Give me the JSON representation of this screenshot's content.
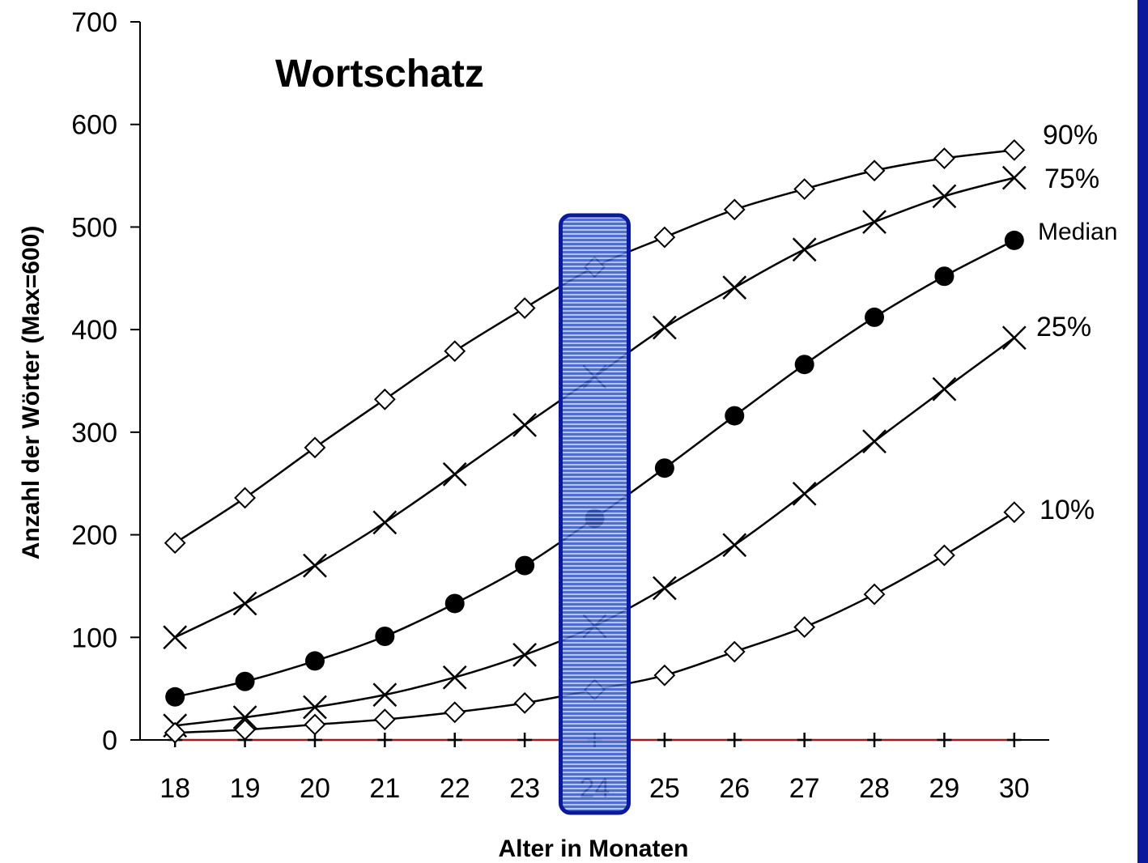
{
  "chart_data": {
    "type": "line",
    "title": "Wortschatz",
    "xlabel": "Alter in Monaten",
    "ylabel": "Anzahl der Wörter (Max=600)",
    "x": [
      18,
      19,
      20,
      21,
      22,
      23,
      24,
      25,
      26,
      27,
      28,
      29,
      30
    ],
    "xlim": [
      17.5,
      30.5
    ],
    "ylim": [
      0,
      700
    ],
    "yticks": [
      0,
      100,
      200,
      300,
      400,
      500,
      600,
      700
    ],
    "grid": false,
    "highlight_x": 24,
    "highlight_color": "#2f55c8",
    "series": [
      {
        "name": "90%",
        "marker": "diamond",
        "values": [
          192,
          236,
          285,
          332,
          379,
          421,
          461,
          490,
          517,
          537,
          555,
          567,
          575
        ]
      },
      {
        "name": "75%",
        "marker": "x",
        "values": [
          100,
          133,
          170,
          212,
          259,
          307,
          354,
          402,
          441,
          478,
          505,
          530,
          548
        ]
      },
      {
        "name": "Median",
        "marker": "circle",
        "values": [
          42,
          57,
          77,
          101,
          133,
          170,
          216,
          265,
          316,
          366,
          412,
          452,
          487
        ]
      },
      {
        "name": "25%",
        "marker": "x",
        "values": [
          14,
          22,
          32,
          44,
          61,
          83,
          111,
          148,
          190,
          240,
          291,
          342,
          392
        ]
      },
      {
        "name": "10%",
        "marker": "diamond",
        "values": [
          7,
          10,
          15,
          20,
          27,
          36,
          49,
          63,
          86,
          110,
          142,
          180,
          222
        ]
      }
    ],
    "baseline": {
      "marker": "plus",
      "color": "#a31a1a",
      "values": [
        0,
        0,
        0,
        0,
        0,
        0,
        0,
        0,
        0,
        0,
        0,
        0,
        0
      ]
    }
  }
}
